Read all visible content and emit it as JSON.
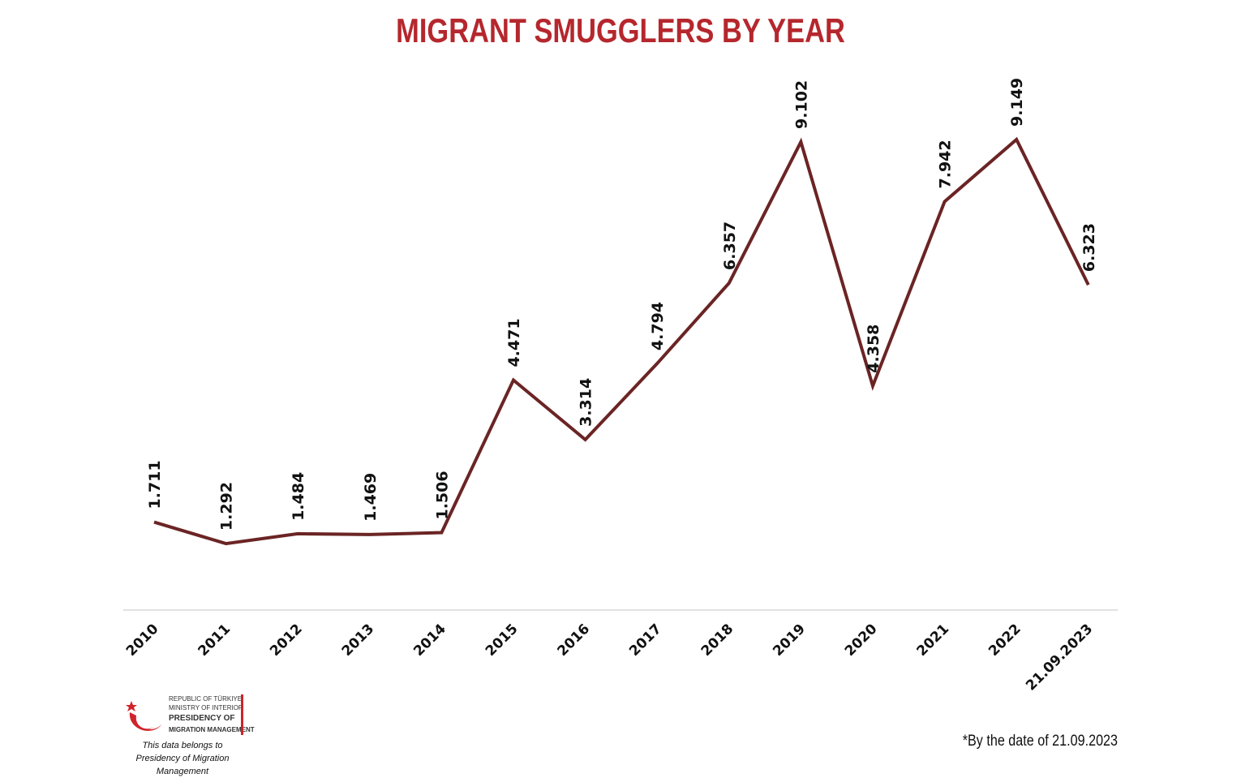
{
  "chart_data": {
    "type": "line",
    "title": "MIGRANT SMUGGLERS BY YEAR",
    "categories": [
      "2010",
      "2011",
      "2012",
      "2013",
      "2014",
      "2015",
      "2016",
      "2017",
      "2018",
      "2019",
      "2020",
      "2021",
      "2022",
      "21.09.2023"
    ],
    "values": [
      1711,
      1292,
      1484,
      1469,
      1506,
      4471,
      3314,
      4794,
      6357,
      9102,
      4358,
      7942,
      9149,
      6323
    ],
    "data_labels": [
      "1.711",
      "1.292",
      "1.484",
      "1.469",
      "1.506",
      "4.471",
      "3.314",
      "4.794",
      "6.357",
      "9.102",
      "4.358",
      "7.942",
      "9.149",
      "6.323"
    ],
    "xlabel": "",
    "ylabel": "",
    "grid": false,
    "legend": "none",
    "line_color": "#6b2424",
    "title_color": "#b5272d"
  },
  "logo": {
    "line1": "REPUBLIC OF TÜRKIYE",
    "line2": "MINISTRY OF INTERIOR",
    "line3": "PRESIDENCY OF",
    "line4": "MIGRATION MANAGEMENT",
    "icon": "crescent-star-icon",
    "accent": "#d0232a"
  },
  "credit": {
    "line1": "This data belongs to",
    "line2": "Presidency of Migration Management"
  },
  "footnote": "*By the date of 21.09.2023"
}
